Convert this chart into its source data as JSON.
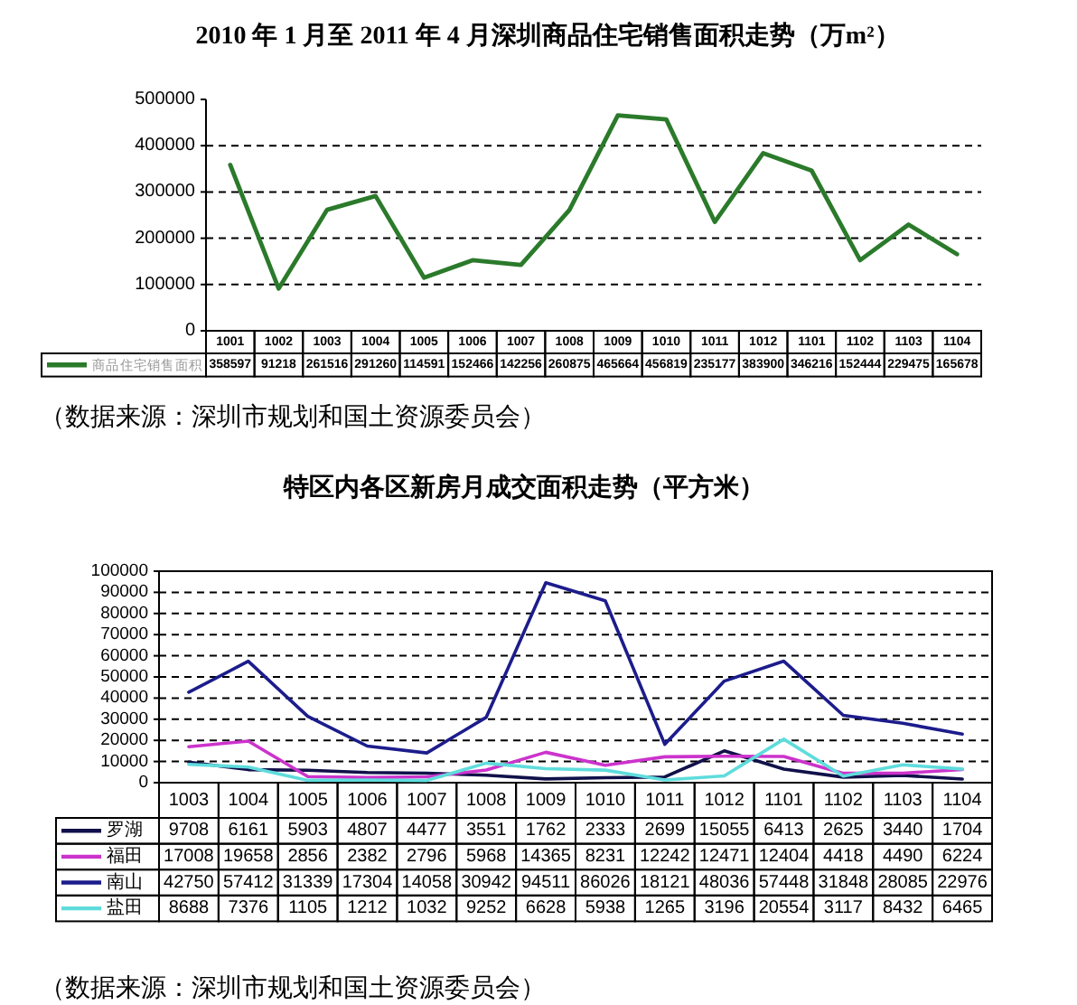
{
  "chart_data": [
    {
      "type": "line",
      "title": "2010 年 1 月至 2011 年 4 月深圳商品住宅销售面积走势（万m²）",
      "categories": [
        "1001",
        "1002",
        "1003",
        "1004",
        "1005",
        "1006",
        "1007",
        "1008",
        "1009",
        "1010",
        "1011",
        "1012",
        "1101",
        "1102",
        "1103",
        "1104"
      ],
      "series": [
        {
          "name": "商品住宅销售面积",
          "color": "#2b7a2b",
          "values": [
            358597,
            91218,
            261516,
            291260,
            114591,
            152466,
            142256,
            260875,
            465664,
            456819,
            235177,
            383900,
            346216,
            152444,
            229475,
            165678
          ]
        }
      ],
      "ylim": [
        0,
        500000
      ],
      "yticks": [
        0,
        100000,
        200000,
        300000,
        400000,
        500000
      ],
      "grid": "y",
      "data_labels": true,
      "legend": "bottom",
      "annotations": [
        "（数据来源：深圳市规划和国土资源委员会）"
      ]
    },
    {
      "type": "line",
      "title": "特区内各区新房月成交面积走势（平方米）",
      "categories": [
        "1003",
        "1004",
        "1005",
        "1006",
        "1007",
        "1008",
        "1009",
        "1010",
        "1011",
        "1012",
        "1101",
        "1102",
        "1103",
        "1104"
      ],
      "series": [
        {
          "name": "罗湖",
          "color": "#10104a",
          "values": [
            9708,
            6161,
            5903,
            4807,
            4477,
            3551,
            1762,
            2333,
            2699,
            15055,
            6413,
            2625,
            3440,
            1704
          ]
        },
        {
          "name": "福田",
          "color": "#cc33cc",
          "values": [
            17008,
            19658,
            2856,
            2382,
            2796,
            5968,
            14365,
            8231,
            12242,
            12471,
            12404,
            4418,
            4490,
            6224
          ]
        },
        {
          "name": "南山",
          "color": "#1c1c8c",
          "values": [
            42750,
            57412,
            31339,
            17304,
            14058,
            30942,
            94511,
            86026,
            18121,
            48036,
            57448,
            31848,
            28085,
            22976
          ]
        },
        {
          "name": "盐田",
          "color": "#5fdcdc",
          "values": [
            8688,
            7376,
            1105,
            1212,
            1032,
            9252,
            6628,
            5938,
            1265,
            3196,
            20554,
            3117,
            8432,
            6465
          ]
        }
      ],
      "ylim": [
        0,
        100000
      ],
      "yticks": [
        0,
        10000,
        20000,
        30000,
        40000,
        50000,
        60000,
        70000,
        80000,
        90000,
        100000
      ],
      "grid": "y",
      "data_labels": true,
      "legend": "bottom",
      "annotations": [
        "（数据来源：深圳市规划和国土资源委员会）"
      ]
    }
  ]
}
